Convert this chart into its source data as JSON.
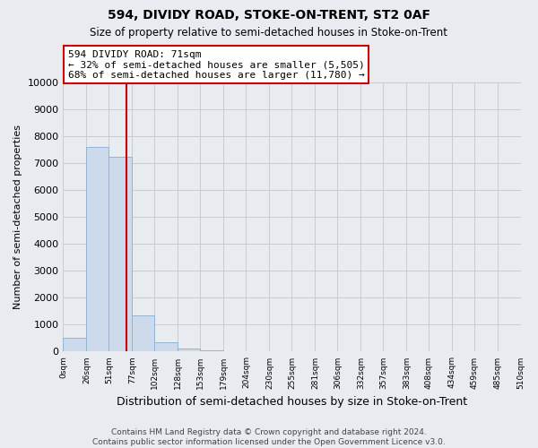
{
  "title1": "594, DIVIDY ROAD, STOKE-ON-TRENT, ST2 0AF",
  "title2": "Size of property relative to semi-detached houses in Stoke-on-Trent",
  "xlabel": "Distribution of semi-detached houses by size in Stoke-on-Trent",
  "ylabel": "Number of semi-detached properties",
  "footnote": "Contains HM Land Registry data © Crown copyright and database right 2024.\nContains public sector information licensed under the Open Government Licence v3.0.",
  "bin_edges": [
    0,
    26,
    51,
    77,
    102,
    128,
    153,
    179,
    204,
    230,
    255,
    281,
    306,
    332,
    357,
    383,
    408,
    434,
    459,
    485,
    510
  ],
  "bar_heights": [
    500,
    7600,
    7250,
    1350,
    350,
    100,
    50,
    20,
    5,
    2,
    1,
    0,
    0,
    0,
    0,
    0,
    0,
    0,
    0,
    0
  ],
  "bar_color": "#ccdaeb",
  "bar_edge_color": "#91b4d0",
  "vline_x": 71,
  "vline_color": "#cc0000",
  "annotation_line1": "594 DIVIDY ROAD: 71sqm",
  "annotation_line2": "← 32% of semi-detached houses are smaller (5,505)",
  "annotation_line3": "68% of semi-detached houses are larger (11,780) →",
  "annotation_border_color": "#cc0000",
  "annotation_bg_color": "#ffffff",
  "ylim": [
    0,
    10000
  ],
  "yticks": [
    0,
    1000,
    2000,
    3000,
    4000,
    5000,
    6000,
    7000,
    8000,
    9000,
    10000
  ],
  "grid_color": "#cccccc",
  "background_color": "#e8ecf0"
}
